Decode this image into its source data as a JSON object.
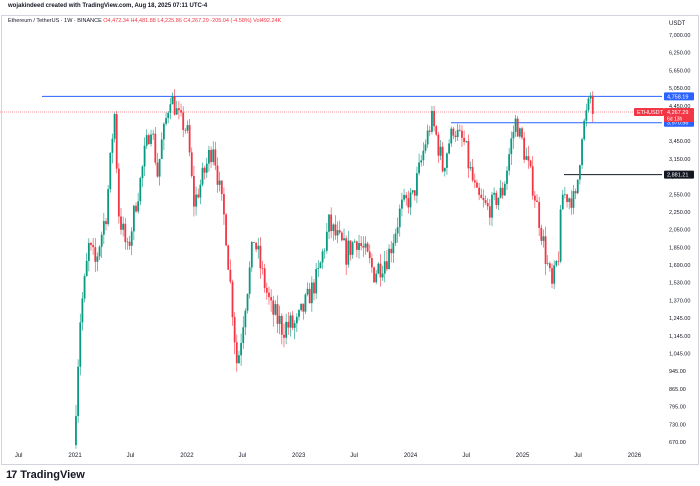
{
  "credit": "wojakindeed created with TradingView.com, Aug 18, 2025 07:11 UTC-4",
  "legend": {
    "symbol": "Ethereum / TetherUS · 1W · BINANCE",
    "open": "O4,472.34",
    "high": "H4,481.88",
    "low": "L4,225.86",
    "close": "C4,267.29",
    "change": "-205.04 (-4.58%)",
    "volume": "Vol492.24K"
  },
  "brand": {
    "logo_text": "TradingView",
    "logo_mark": "17"
  },
  "colors": {
    "up": "#089981",
    "down": "#f23645",
    "hline": "#2962ff",
    "black_line": "#131722"
  },
  "chart_data": {
    "type": "candlestick",
    "currency": "USDT",
    "yscale": "log",
    "ylim": [
      660,
      8000
    ],
    "y_ticks": [
      "7,000.00",
      "6,250.00",
      "5,650.00",
      "5,050.00",
      "4,450.00",
      "3,950.00",
      "3,450.00",
      "3,150.00",
      "2,850.00",
      "2,550.00",
      "2,250.00",
      "2,050.00",
      "1,850.00",
      "1,690.00",
      "1,530.00",
      "1,370.00",
      "1,245.00",
      "1,145.00",
      "1,045.00",
      "945.00",
      "865.00",
      "795.00",
      "730.00",
      "670.00"
    ],
    "x_ticks": [
      "Jul",
      "2021",
      "Jul",
      "2022",
      "Jul",
      "2023",
      "Jul",
      "2024",
      "Jul",
      "2025",
      "Jul",
      "2026"
    ],
    "horizontal_lines": [
      {
        "price": 4758.19,
        "label": "4,758.19",
        "color": "#2962ff"
      },
      {
        "price": 3970.56,
        "label": "3,970.56",
        "color": "#2962ff"
      },
      {
        "price": 2881.21,
        "label": "2,881.21",
        "color": "#131722"
      }
    ],
    "last_price": {
      "symbol": "ETHUSDT",
      "price_label": "4,267.29",
      "countdown": "6d 13h"
    },
    "path": [
      [
        "2020-12-28",
        660
      ],
      [
        "2021-01-18",
        1250
      ],
      [
        "2021-02-15",
        1850
      ],
      [
        "2021-03-08",
        1700
      ],
      [
        "2021-04-12",
        2250
      ],
      [
        "2021-05-10",
        4200
      ],
      [
        "2021-05-24",
        2250
      ],
      [
        "2021-06-21",
        1800
      ],
      [
        "2021-08-16",
        3200
      ],
      [
        "2021-09-06",
        3900
      ],
      [
        "2021-09-27",
        2900
      ],
      [
        "2021-11-08",
        4800
      ],
      [
        "2021-12-06",
        4100
      ],
      [
        "2022-01-03",
        3700
      ],
      [
        "2022-01-24",
        2400
      ],
      [
        "2022-03-28",
        3450
      ],
      [
        "2022-05-09",
        2000
      ],
      [
        "2022-06-13",
        1000
      ],
      [
        "2022-06-20",
        1050
      ],
      [
        "2022-08-08",
        1950
      ],
      [
        "2022-10-03",
        1300
      ],
      [
        "2022-11-07",
        1200
      ],
      [
        "2022-12-26",
        1200
      ],
      [
        "2023-03-06",
        1600
      ],
      [
        "2023-04-10",
        2100
      ],
      [
        "2023-06-05",
        1800
      ],
      [
        "2023-07-10",
        1950
      ],
      [
        "2023-09-04",
        1620
      ],
      [
        "2023-10-23",
        1800
      ],
      [
        "2023-12-04",
        2350
      ],
      [
        "2024-01-08",
        2500
      ],
      [
        "2024-03-11",
        4050
      ],
      [
        "2024-04-15",
        3000
      ],
      [
        "2024-05-20",
        3800
      ],
      [
        "2024-06-24",
        3400
      ],
      [
        "2024-08-05",
        2500
      ],
      [
        "2024-09-09",
        2300
      ],
      [
        "2024-10-28",
        2600
      ],
      [
        "2024-12-09",
        4000
      ],
      [
        "2025-01-06",
        3300
      ],
      [
        "2025-02-03",
        2700
      ],
      [
        "2025-03-10",
        1900
      ],
      [
        "2025-04-07",
        1480
      ],
      [
        "2025-04-28",
        1800
      ],
      [
        "2025-05-12",
        2550
      ],
      [
        "2025-06-23",
        2450
      ],
      [
        "2025-07-14",
        3700
      ],
      [
        "2025-08-11",
        4750
      ],
      [
        "2025-08-18",
        4267.29
      ]
    ]
  }
}
